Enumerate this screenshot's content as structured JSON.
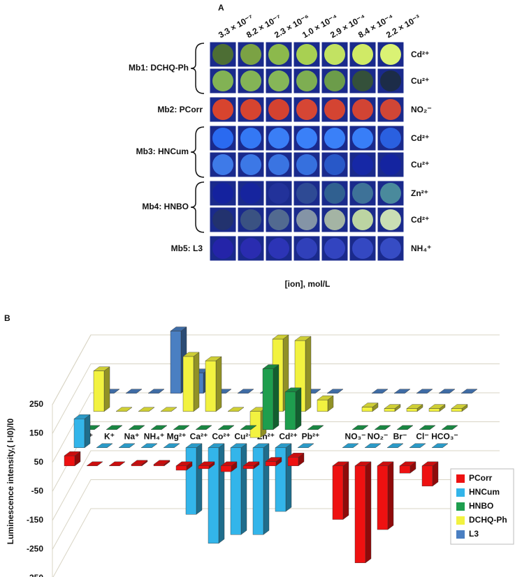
{
  "panel_a": {
    "label": "A",
    "concentrations": [
      "3.3 × 10⁻⁷",
      "8.2 × 10⁻⁷",
      "2.3 × 10⁻⁶",
      "1.0 × 10⁻⁴",
      "2.9 × 10⁻⁴",
      "8.4 × 10⁻⁴",
      "2.2 × 10⁻³"
    ],
    "x_label": "[ion], mol/L",
    "sensors": [
      {
        "name": "Mb1: DCHQ-Ph",
        "rows": [
          {
            "ion": "Cd²⁺",
            "colors": [
              "#4d6e34",
              "#7ba244",
              "#8cb94c",
              "#a8d052",
              "#c2e262",
              "#d0ea66",
              "#daf274"
            ]
          },
          {
            "ion": "Cu²⁺",
            "colors": [
              "#82b254",
              "#84b456",
              "#86b658",
              "#7eae52",
              "#6c9c4a",
              "#34503a",
              "#1c2c48"
            ]
          }
        ]
      },
      {
        "name": "Mb2: PCorr",
        "rows": [
          {
            "ion": "NO₂⁻",
            "colors": [
              "#d8442e",
              "#d64430",
              "#d44230",
              "#d64634",
              "#d44432",
              "#d24434",
              "#d04636"
            ]
          }
        ]
      },
      {
        "name": "Mb3: HNCum",
        "rows": [
          {
            "ion": "Cd²⁺",
            "colors": [
              "#2a6af0",
              "#3478f4",
              "#3a7ef6",
              "#3a80f8",
              "#3a80f8",
              "#387ef8",
              "#2a60e0"
            ]
          },
          {
            "ion": "Cu²⁺",
            "colors": [
              "#3e7ae8",
              "#3c78e6",
              "#3a74e2",
              "#3670de",
              "#2858c8",
              "#1628a6",
              "#1424a0"
            ]
          }
        ]
      },
      {
        "name": "Mb4: HNBO",
        "rows": [
          {
            "ion": "Zn²⁺",
            "colors": [
              "#14229e",
              "#16249e",
              "#22329a",
              "#2e4a94",
              "#306090",
              "#3e7298",
              "#4a8a9c"
            ]
          },
          {
            "ion": "Cd²⁺",
            "colors": [
              "#22326e",
              "#3a5282",
              "#526a90",
              "#8494a6",
              "#a4b4a4",
              "#bcd4a2",
              "#cadeb4"
            ]
          }
        ]
      },
      {
        "name": "Mb5: L3",
        "rows": [
          {
            "ion": "NH₄⁺",
            "colors": [
              "#2424a8",
              "#2a2cb0",
              "#2c34b6",
              "#3040ba",
              "#3244c0",
              "#3448c2",
              "#364cc4"
            ]
          }
        ]
      }
    ]
  },
  "chart_data": {
    "type": "bar3d",
    "label": "B",
    "y_label": "Luminescence intensity,( I-I0)/I0",
    "categories": [
      "Li⁺",
      "K⁺",
      "Na⁺",
      "NH₄⁺",
      "Mg²⁺",
      "Ca²⁺",
      "Co²⁺",
      "Cu²⁺",
      "Zn²⁺",
      "Cd²⁺",
      "Pb²⁺",
      null,
      "NO₃⁻",
      "NO₂⁻",
      "Br⁻",
      "Cl⁻",
      "HCO₃⁻"
    ],
    "series": [
      {
        "name": "PCorr",
        "color": "#ee1111",
        "values": [
          35,
          0,
          0,
          5,
          5,
          -15,
          -10,
          -20,
          -10,
          15,
          30,
          null,
          -185,
          -335,
          -220,
          -25,
          -70
        ]
      },
      {
        "name": "HNCum",
        "color": "#33b5ea",
        "values": [
          100,
          0,
          0,
          0,
          0,
          -230,
          -330,
          -300,
          -300,
          -220,
          0,
          null,
          0,
          0,
          0,
          0,
          0
        ]
      },
      {
        "name": "HNBO",
        "color": "#1e9e4e",
        "values": [
          0,
          0,
          0,
          0,
          0,
          0,
          0,
          0,
          210,
          130,
          0,
          null,
          0,
          0,
          0,
          0,
          0
        ]
      },
      {
        "name": "DCHQ-Ph",
        "color": "#f2f240",
        "values": [
          140,
          0,
          0,
          0,
          190,
          175,
          0,
          -90,
          250,
          245,
          40,
          null,
          15,
          10,
          10,
          10,
          10
        ]
      },
      {
        "name": "L3",
        "color": "#4a7fc2",
        "values": [
          0,
          0,
          0,
          215,
          70,
          0,
          0,
          0,
          0,
          0,
          0,
          null,
          0,
          0,
          0,
          0,
          0
        ]
      }
    ],
    "ylim": [
      -350,
      250
    ],
    "yticks": [
      250,
      150,
      50,
      -50,
      -150,
      -250,
      -350
    ],
    "grid": true,
    "legend": "lower right"
  }
}
